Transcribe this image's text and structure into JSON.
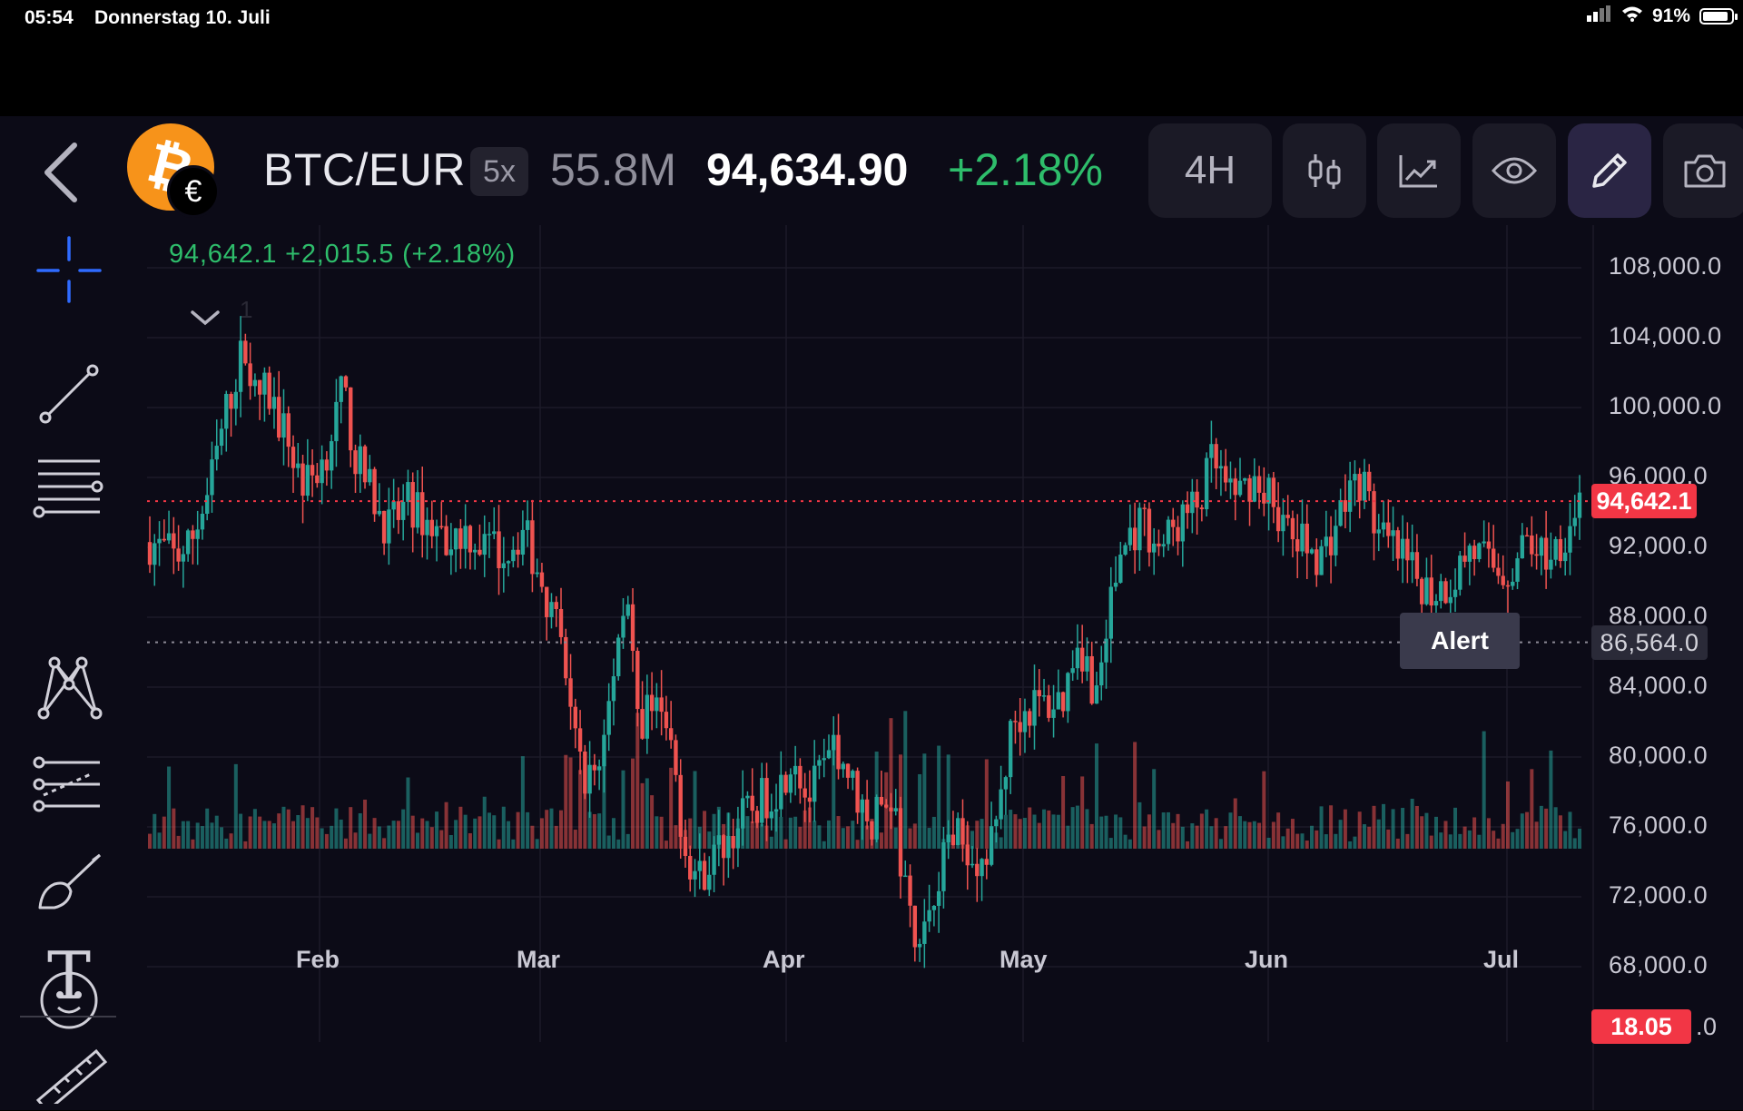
{
  "status_bar": {
    "time": "05:54",
    "date": "Donnerstag 10. Juli",
    "battery": "91%",
    "battery_level": 0.91
  },
  "header": {
    "pair": "BTC/EUR",
    "leverage": "5x",
    "volume": "55.8M",
    "price": "94,634.90",
    "change": "+2.18%",
    "timeframe": "4H",
    "coin_icon": "bitcoin-icon",
    "quote_icon": "euro-icon",
    "buttons": [
      "back-icon",
      "candles-icon",
      "indicators-icon",
      "visibility-icon",
      "pencil-icon",
      "camera-icon"
    ]
  },
  "toolbar": {
    "tools": [
      "crosshair-icon",
      "trend-line-icon",
      "parallel-lines-icon",
      "pattern-icon",
      "fib-icon",
      "brush-icon",
      "text-icon",
      "emoji-icon",
      "ruler-icon"
    ],
    "text_tool_glyph": "T"
  },
  "chart": {
    "legend": "94,642.1  +2,015.5 (+2.18%)",
    "collapse_number": "1",
    "last_price_tag": "94,642.1",
    "alert_price_tag": "86,564.0",
    "alert_label": "Alert",
    "volume_tag": "18.05",
    "y_tail": ".0",
    "colors": {
      "up": "#26a69a",
      "down": "#ef5350",
      "last_line": "#f23645",
      "alert_line": "#8b8a96"
    }
  },
  "chart_data": {
    "type": "candlestick",
    "timeframe": "4H",
    "y_ticks": [
      "108,000.0",
      "104,000.0",
      "100,000.0",
      "96,000.0",
      "92,000.0",
      "88,000.0",
      "84,000.0",
      "80,000.0",
      "76,000.0",
      "72,000.0",
      "68,000.0"
    ],
    "x_ticks": [
      "Feb",
      "Mar",
      "Apr",
      "May",
      "Jun",
      "Jul"
    ],
    "ylim": [
      64500,
      110000
    ],
    "last_price": 94642.1,
    "alert_price": 86564.0,
    "path": [
      [
        0,
        92300
      ],
      [
        0.02,
        91500
      ],
      [
        0.03,
        92000
      ],
      [
        0.045,
        95000
      ],
      [
        0.06,
        100000
      ],
      [
        0.075,
        104000
      ],
      [
        0.08,
        100500
      ],
      [
        0.09,
        101000
      ],
      [
        0.105,
        98500
      ],
      [
        0.12,
        95500
      ],
      [
        0.135,
        97000
      ],
      [
        0.15,
        101000
      ],
      [
        0.16,
        97000
      ],
      [
        0.17,
        95500
      ],
      [
        0.185,
        93000
      ],
      [
        0.2,
        94500
      ],
      [
        0.215,
        93500
      ],
      [
        0.23,
        92500
      ],
      [
        0.245,
        93000
      ],
      [
        0.26,
        92000
      ],
      [
        0.275,
        91700
      ],
      [
        0.29,
        93000
      ],
      [
        0.305,
        90000
      ],
      [
        0.32,
        86000
      ],
      [
        0.335,
        79000
      ],
      [
        0.35,
        79500
      ],
      [
        0.37,
        90500
      ],
      [
        0.38,
        81000
      ],
      [
        0.39,
        83500
      ],
      [
        0.405,
        80500
      ],
      [
        0.415,
        75000
      ],
      [
        0.425,
        73000
      ],
      [
        0.44,
        74500
      ],
      [
        0.46,
        76500
      ],
      [
        0.475,
        77500
      ],
      [
        0.49,
        78500
      ],
      [
        0.5,
        80500
      ],
      [
        0.51,
        77500
      ],
      [
        0.525,
        79500
      ],
      [
        0.535,
        80500
      ],
      [
        0.545,
        78500
      ],
      [
        0.56,
        76000
      ],
      [
        0.575,
        78000
      ],
      [
        0.585,
        73000
      ],
      [
        0.595,
        68500
      ],
      [
        0.605,
        71500
      ],
      [
        0.62,
        75500
      ],
      [
        0.635,
        75000
      ],
      [
        0.65,
        73500
      ],
      [
        0.66,
        77500
      ],
      [
        0.67,
        82000
      ],
      [
        0.685,
        83000
      ],
      [
        0.7,
        83000
      ],
      [
        0.71,
        83500
      ],
      [
        0.72,
        87000
      ],
      [
        0.735,
        83500
      ],
      [
        0.745,
        88500
      ],
      [
        0.755,
        92000
      ],
      [
        0.77,
        93500
      ],
      [
        0.785,
        92000
      ],
      [
        0.8,
        93500
      ],
      [
        0.815,
        94500
      ],
      [
        0.825,
        97000
      ],
      [
        0.84,
        94500
      ],
      [
        0.855,
        96000
      ],
      [
        0.87,
        95000
      ],
      [
        0.885,
        92500
      ],
      [
        0.9,
        92000
      ],
      [
        0.91,
        91500
      ],
      [
        0.93,
        95000
      ],
      [
        0.94,
        96000
      ],
      [
        0.955,
        92500
      ],
      [
        0.97,
        91500
      ],
      [
        0.98,
        90500
      ],
      [
        0.995,
        89500
      ],
      [
        1.01,
        90000
      ],
      [
        1.025,
        92000
      ],
      [
        1.04,
        91000
      ],
      [
        1.055,
        90500
      ],
      [
        1.07,
        92500
      ],
      [
        1.085,
        91500
      ],
      [
        1.1,
        93000
      ],
      [
        1.11,
        94800
      ]
    ]
  }
}
